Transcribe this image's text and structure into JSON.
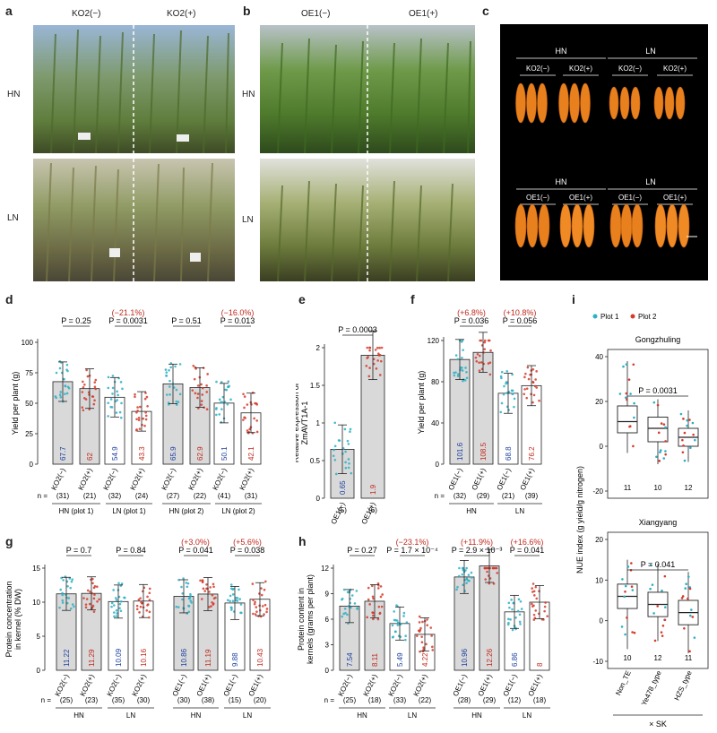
{
  "panels": {
    "a": {
      "letter": "a",
      "col1": "KO2(−)",
      "col2": "KO2(+)",
      "row1": "HN",
      "row2": "LN"
    },
    "b": {
      "letter": "b",
      "col1": "OE1(−)",
      "col2": "OE1(+)",
      "row1": "HN",
      "row2": "LN"
    },
    "c": {
      "letter": "c",
      "top_hn": "HN",
      "top_ln": "LN",
      "top_labels": [
        "KO2(−)",
        "KO2(+)",
        "KO2(−)",
        "KO2(+)"
      ],
      "bot_hn": "HN",
      "bot_ln": "LN",
      "bot_labels": [
        "OE1(−)",
        "OE1(+)",
        "OE1(−)",
        "OE1(+)"
      ]
    },
    "d": {
      "letter": "d"
    },
    "e": {
      "letter": "e"
    },
    "f": {
      "letter": "f"
    },
    "g": {
      "letter": "g"
    },
    "h": {
      "letter": "h"
    },
    "i": {
      "letter": "i"
    }
  },
  "chart_data": [
    {
      "id": "d",
      "type": "bar",
      "ylabel": "Yield per plant (g)",
      "ylim": [
        0,
        100
      ],
      "yticks": [
        0,
        25,
        50,
        75,
        100
      ],
      "categories": [
        "KO2(−)",
        "KO2(+)",
        "KO2(−)",
        "KO2(+)",
        "KO2(−)",
        "KO2(+)",
        "KO2(−)",
        "KO2(+)"
      ],
      "values": [
        67.7,
        62.0,
        54.9,
        43.3,
        65.9,
        62.9,
        50.1,
        42.1
      ],
      "n_prefix": "n =",
      "n": [
        "(31)",
        "(21)",
        "(32)",
        "(24)",
        "(27)",
        "(22)",
        "(41)",
        "(31)"
      ],
      "groups": [
        "HN (plot 1)",
        "LN (plot 1)",
        "HN (plot 2)",
        "LN (plot 2)"
      ],
      "pvalues": [
        "P = 0.25",
        "P = 0.0031",
        "P = 0.51",
        "P = 0.013"
      ],
      "changes": [
        "(−21.1%)",
        "(−16.0%)"
      ]
    },
    {
      "id": "e",
      "type": "bar",
      "ylabel": "Relative expression of ZmAVT1A-1",
      "ylim": [
        0,
        2.0
      ],
      "yticks": [
        0,
        0.5,
        1.0,
        1.5,
        2.0
      ],
      "categories": [
        "OE1(−)",
        "OE1(+)"
      ],
      "values": [
        0.65,
        1.9
      ],
      "n": [
        "(5)",
        "(6)"
      ],
      "pvalues": [
        "P = 0.0003"
      ]
    },
    {
      "id": "f",
      "type": "bar",
      "ylabel": "Yield per plant (g)",
      "ylim": [
        0,
        120
      ],
      "yticks": [
        0,
        40,
        80,
        120
      ],
      "categories": [
        "OE1(−)",
        "OE1(+)",
        "OE1(−)",
        "OE1(+)"
      ],
      "values": [
        101.6,
        108.5,
        68.8,
        76.2
      ],
      "n_prefix": "n =",
      "n": [
        "(32)",
        "(29)",
        "(21)",
        "(39)"
      ],
      "groups": [
        "HN",
        "LN"
      ],
      "pvalues": [
        "P = 0.036",
        "P = 0.056"
      ],
      "changes": [
        "(+6.8%)",
        "(+10.8%)"
      ]
    },
    {
      "id": "g",
      "type": "bar",
      "ylabel": "Protein concentration in kernel (% DW)",
      "ylim": [
        0,
        15
      ],
      "yticks": [
        0,
        5,
        10,
        15
      ],
      "categories": [
        "KO2(−)",
        "KO2(+)",
        "KO2(−)",
        "KO2(+)",
        "OE1(−)",
        "OE1(+)",
        "OE1(−)",
        "OE1(+)"
      ],
      "values": [
        11.22,
        11.29,
        10.09,
        10.16,
        10.86,
        11.19,
        9.88,
        10.43
      ],
      "n_prefix": "n =",
      "n": [
        "(25)",
        "(23)",
        "(35)",
        "(30)",
        "(30)",
        "(38)",
        "(15)",
        "(20)"
      ],
      "groups": [
        "HN",
        "LN",
        "HN",
        "LN"
      ],
      "pvalues": [
        "P = 0.7",
        "P = 0.84",
        "P = 0.041",
        "P = 0.038"
      ],
      "changes": [
        "(+3.0%)",
        "(+5.6%)"
      ]
    },
    {
      "id": "h",
      "type": "bar",
      "ylabel": "Protein content in kernels (grams per plant)",
      "ylim": [
        0,
        12
      ],
      "yticks": [
        0,
        3,
        6,
        9,
        12
      ],
      "categories": [
        "KO2(−)",
        "KO2(+)",
        "KO2(−)",
        "KO2(+)",
        "OE1(−)",
        "OE1(+)",
        "OE1(−)",
        "OE1(+)"
      ],
      "values": [
        7.54,
        8.11,
        5.49,
        4.22,
        10.96,
        12.26,
        6.86,
        8.0
      ],
      "n_prefix": "n =",
      "n": [
        "(25)",
        "(18)",
        "(33)",
        "(22)",
        "(28)",
        "(29)",
        "(12)",
        "(18)"
      ],
      "groups": [
        "HN",
        "LN",
        "HN",
        "LN"
      ],
      "pvalues": [
        "P = 0.27",
        "P = 1.7 × 10⁻⁴",
        "P = 2.9 × 10⁻³",
        "P = 0.041"
      ],
      "changes": [
        "(−23.1%)",
        "(+11.9%)",
        "(+16.6%)"
      ]
    },
    {
      "id": "i",
      "type": "box",
      "ylabel": "NUE index (g yield/g nitrogen)",
      "legend": [
        "Plot 1",
        "Plot 2"
      ],
      "categories": [
        "Non_TE",
        "Ye478_type",
        "HZS_type"
      ],
      "xlabel": "× SK",
      "subplots": [
        {
          "title": "Gongzhuling",
          "ylim": [
            -20,
            40
          ],
          "yticks": [
            -20,
            0,
            20,
            40
          ],
          "pvalue": "P = 0.0031",
          "n": [
            "11",
            "10",
            "12"
          ],
          "boxes": [
            {
              "q1": 6,
              "med": 11,
              "q3": 18,
              "lo": -3,
              "hi": 38
            },
            {
              "q1": 2,
              "med": 8,
              "q3": 13,
              "lo": -8,
              "hi": 21
            },
            {
              "q1": 0,
              "med": 4,
              "q3": 8,
              "lo": -7,
              "hi": 16
            }
          ]
        },
        {
          "title": "Xiangyang",
          "ylim": [
            -10,
            20
          ],
          "yticks": [
            -10,
            0,
            10,
            20
          ],
          "pvalue": "P = 0.041",
          "n": [
            "10",
            "12",
            "11"
          ],
          "boxes": [
            {
              "q1": 3,
              "med": 6,
              "q3": 9,
              "lo": -7,
              "hi": 15
            },
            {
              "q1": 1,
              "med": 4,
              "q3": 7,
              "lo": -5,
              "hi": 14
            },
            {
              "q1": -1,
              "med": 2,
              "q3": 5,
              "lo": -8,
              "hi": 12
            }
          ]
        }
      ]
    }
  ],
  "colors": {
    "blue": "#2bb0c4",
    "red": "#d63a2a",
    "bar_gray": "#d9d9d9",
    "blue_text": "#1a3fa0",
    "red_text": "#c0281c"
  }
}
